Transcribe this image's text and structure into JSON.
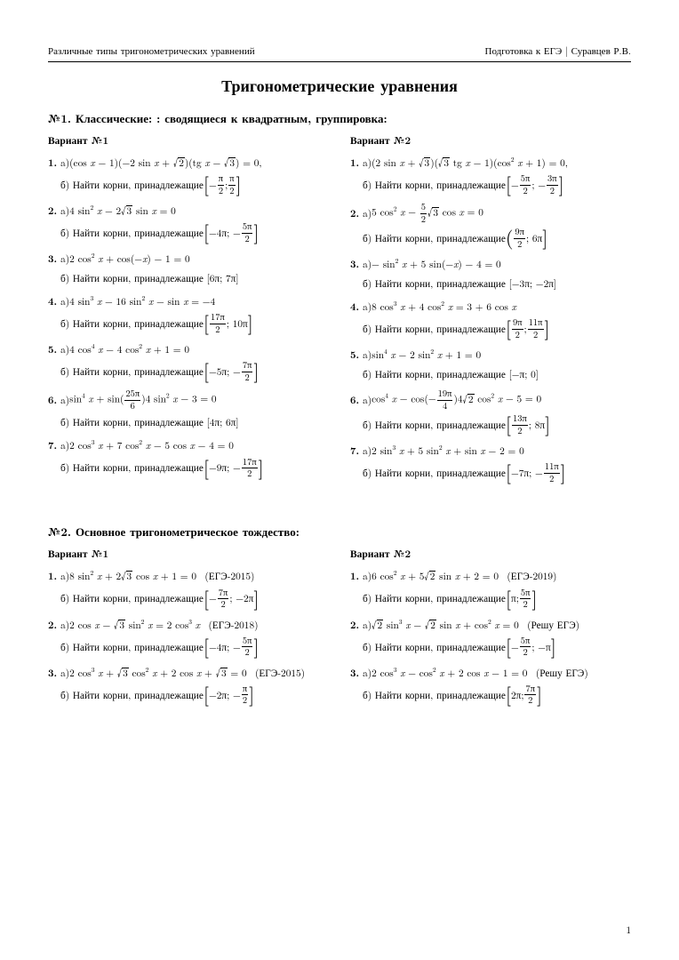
{
  "header": {
    "left": "Различные типы тригонометрических уравнений",
    "right": "Подготовка к ЕГЭ | Суравцев Р.В."
  },
  "title": "Тригонометрические уравнения",
  "page_number": "1",
  "sections": [
    {
      "heading": "№1. Классические: : сводящиеся к квадратным, группировка:",
      "variants": [
        {
          "name": "Вариант №1",
          "problems": [
            {
              "a": "(cos <i>x</i> − 1)(−2 sin <i>x</i> + {sqrt2})(tg <i>x</i> − {sqrt3}) = 0,",
              "b": "Найти корни, принадлежащие {L}−{fr|π|2}; {fr|π|2}{R}"
            },
            {
              "a": "4 sin<sup>2</sup> <i>x</i> − 2{sqrt3} sin <i>x</i> = 0",
              "b": "Найти корни, принадлежащие {L}−4π; −{fr|5π|2}{R}"
            },
            {
              "a": "2 cos<sup>2</sup> <i>x</i> + cos(−<i>x</i>) − 1 = 0",
              "b": "Найти корни, принадлежащие [6π; 7π]"
            },
            {
              "a": "4 sin<sup>3</sup> <i>x</i> − 16 sin<sup>2</sup> <i>x</i> − sin <i>x</i> = −4",
              "b": "Найти корни, принадлежащие {L}{fr|17π|2}; 10π{R}"
            },
            {
              "a": "4 cos<sup>4</sup> <i>x</i> − 4 cos<sup>2</sup> <i>x</i> + 1 = 0",
              "b": "Найти корни, принадлежащие {L}−5π; −{fr|7π|2}{R}"
            },
            {
              "a": "sin<sup>4</sup> <i>x</i> + sin({fr|25π|6})4 sin<sup>2</sup> <i>x</i> − 3 = 0",
              "b": "Найти корни, принадлежащие [4π; 6π]"
            },
            {
              "a": "2 cos<sup>3</sup> <i>x</i> + 7 cos<sup>2</sup> <i>x</i> − 5 cos <i>x</i> − 4 = 0",
              "b": "Найти корни, принадлежащие {L}−9π; −{fr|17π|2}{R}"
            }
          ]
        },
        {
          "name": "Вариант №2",
          "problems": [
            {
              "a": "(2 sin <i>x</i> + {sqrt3})({sqrt3} tg <i>x</i> − 1)(cos<sup>2</sup> <i>x</i> + 1) = 0,",
              "b": "Найти корни, принадлежащие {L}−{fr|5π|2}; −{fr|3π|2}{R}"
            },
            {
              "a": "5 cos<sup>2</sup> <i>x</i> − {fr|5|2}{sqrt3} cos <i>x</i> = 0",
              "b": "Найти корни, принадлежащие {Lp}{fr|9π|2}; 6π{R}"
            },
            {
              "a": "− sin<sup>2</sup> <i>x</i> + 5 sin(−<i>x</i>) − 4 = 0",
              "b": "Найти корни, принадлежащие [−3π; −2π]"
            },
            {
              "a": "8 cos<sup>3</sup> <i>x</i> + 4 cos<sup>2</sup> <i>x</i> = 3 + 6 cos <i>x</i>",
              "b": "Найти корни, принадлежащие {L}{fr|9π|2}; {fr|11π|2}{R}"
            },
            {
              "a": "sin<sup>4</sup> <i>x</i> − 2 sin<sup>2</sup> <i>x</i> + 1 = 0",
              "b": "Найти корни, принадлежащие [−π; 0]"
            },
            {
              "a": "cos<sup>4</sup> <i>x</i> − cos(−{fr|19π|4})4{sqrt2} cos<sup>2</sup> <i>x</i> − 5 = 0",
              "b": "Найти корни, принадлежащие {L}{fr|13π|2}; 8π{R}"
            },
            {
              "a": "2 sin<sup>3</sup> <i>x</i> + 5 sin<sup>2</sup> <i>x</i> + sin <i>x</i> − 2 = 0",
              "b": "Найти корни, принадлежащие {L}−7π; −{fr|11π|2}{R}"
            }
          ]
        }
      ]
    },
    {
      "heading": "№2. Основное тригонометрическое тождество:",
      "variants": [
        {
          "name": "Вариант №1",
          "problems": [
            {
              "a": "8 sin<sup>2</sup> <i>x</i> + 2{sqrt3} cos <i>x</i> + 1 = 0 &nbsp;(ЕГЭ-2015)",
              "b": "Найти корни, принадлежащие {L}−{fr|7π|2}; −2π{R}"
            },
            {
              "a": "2 cos <i>x</i> − {sqrt3} sin<sup>2</sup> <i>x</i> = 2 cos<sup>3</sup> <i>x</i> &nbsp;(ЕГЭ-2018)",
              "b": "Найти корни, принадлежащие {L}−4π; −{fr|5π|2}{R}"
            },
            {
              "a": "2 cos<sup>3</sup> <i>x</i> + {sqrt3} cos<sup>2</sup> <i>x</i> + 2 cos <i>x</i> + {sqrt3} = 0 &nbsp;(ЕГЭ-2015)",
              "b": "Найти корни, принадлежащие {L}−2π; −{fr|π|2}{R}"
            }
          ]
        },
        {
          "name": "Вариант №2",
          "problems": [
            {
              "a": "6 cos<sup>2</sup> <i>x</i> + 5{sqrt2} sin <i>x</i> + 2 = 0 &nbsp;(ЕГЭ-2019)",
              "b": "Найти корни, принадлежащие {L}π; {fr|5π|2}{R}"
            },
            {
              "a": "{sqrt2} sin<sup>3</sup> <i>x</i> − {sqrt2} sin <i>x</i> + cos<sup>2</sup> <i>x</i> = 0 &nbsp;(Решу ЕГЭ)",
              "b": "Найти корни, принадлежащие {L}−{fr|5π|2}; −π{R}"
            },
            {
              "a": "2 cos<sup>3</sup> <i>x</i> − cos<sup>2</sup> <i>x</i> + 2 cos <i>x</i> − 1 = 0 &nbsp;(Решу ЕГЭ)",
              "b": "Найти корни, принадлежащие {L}2π; {fr|7π|2}{R}"
            }
          ]
        }
      ]
    }
  ]
}
